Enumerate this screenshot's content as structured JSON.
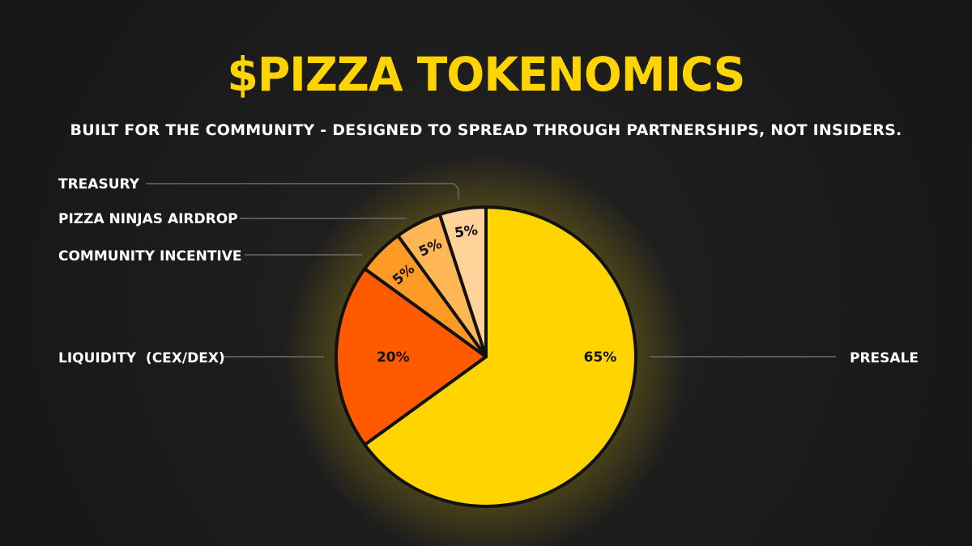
{
  "title": "$PIZZA TOKENOMICS",
  "subtitle": "BUILT FOR THE COMMUNITY - DESIGNED TO SPREAD THROUGH PARTNERSHIPS, NOT INSIDERS.",
  "chart_data": {
    "type": "pie",
    "slices": [
      {
        "label": "PRESALE",
        "value": 65,
        "display": "65%",
        "color": "#ffd400"
      },
      {
        "label": "LIQUIDITY  (CEX/DEX)",
        "value": 20,
        "display": "20%",
        "color": "#ff5a00"
      },
      {
        "label": "COMMUNITY INCENTIVE",
        "value": 5,
        "display": "5%",
        "color": "#ff9a26"
      },
      {
        "label": "PIZZA NINJAS AIRDROP",
        "value": 5,
        "display": "5%",
        "color": "#ffb655"
      },
      {
        "label": "TREASURY",
        "value": 5,
        "display": "5%",
        "color": "#ffd29a"
      }
    ]
  }
}
